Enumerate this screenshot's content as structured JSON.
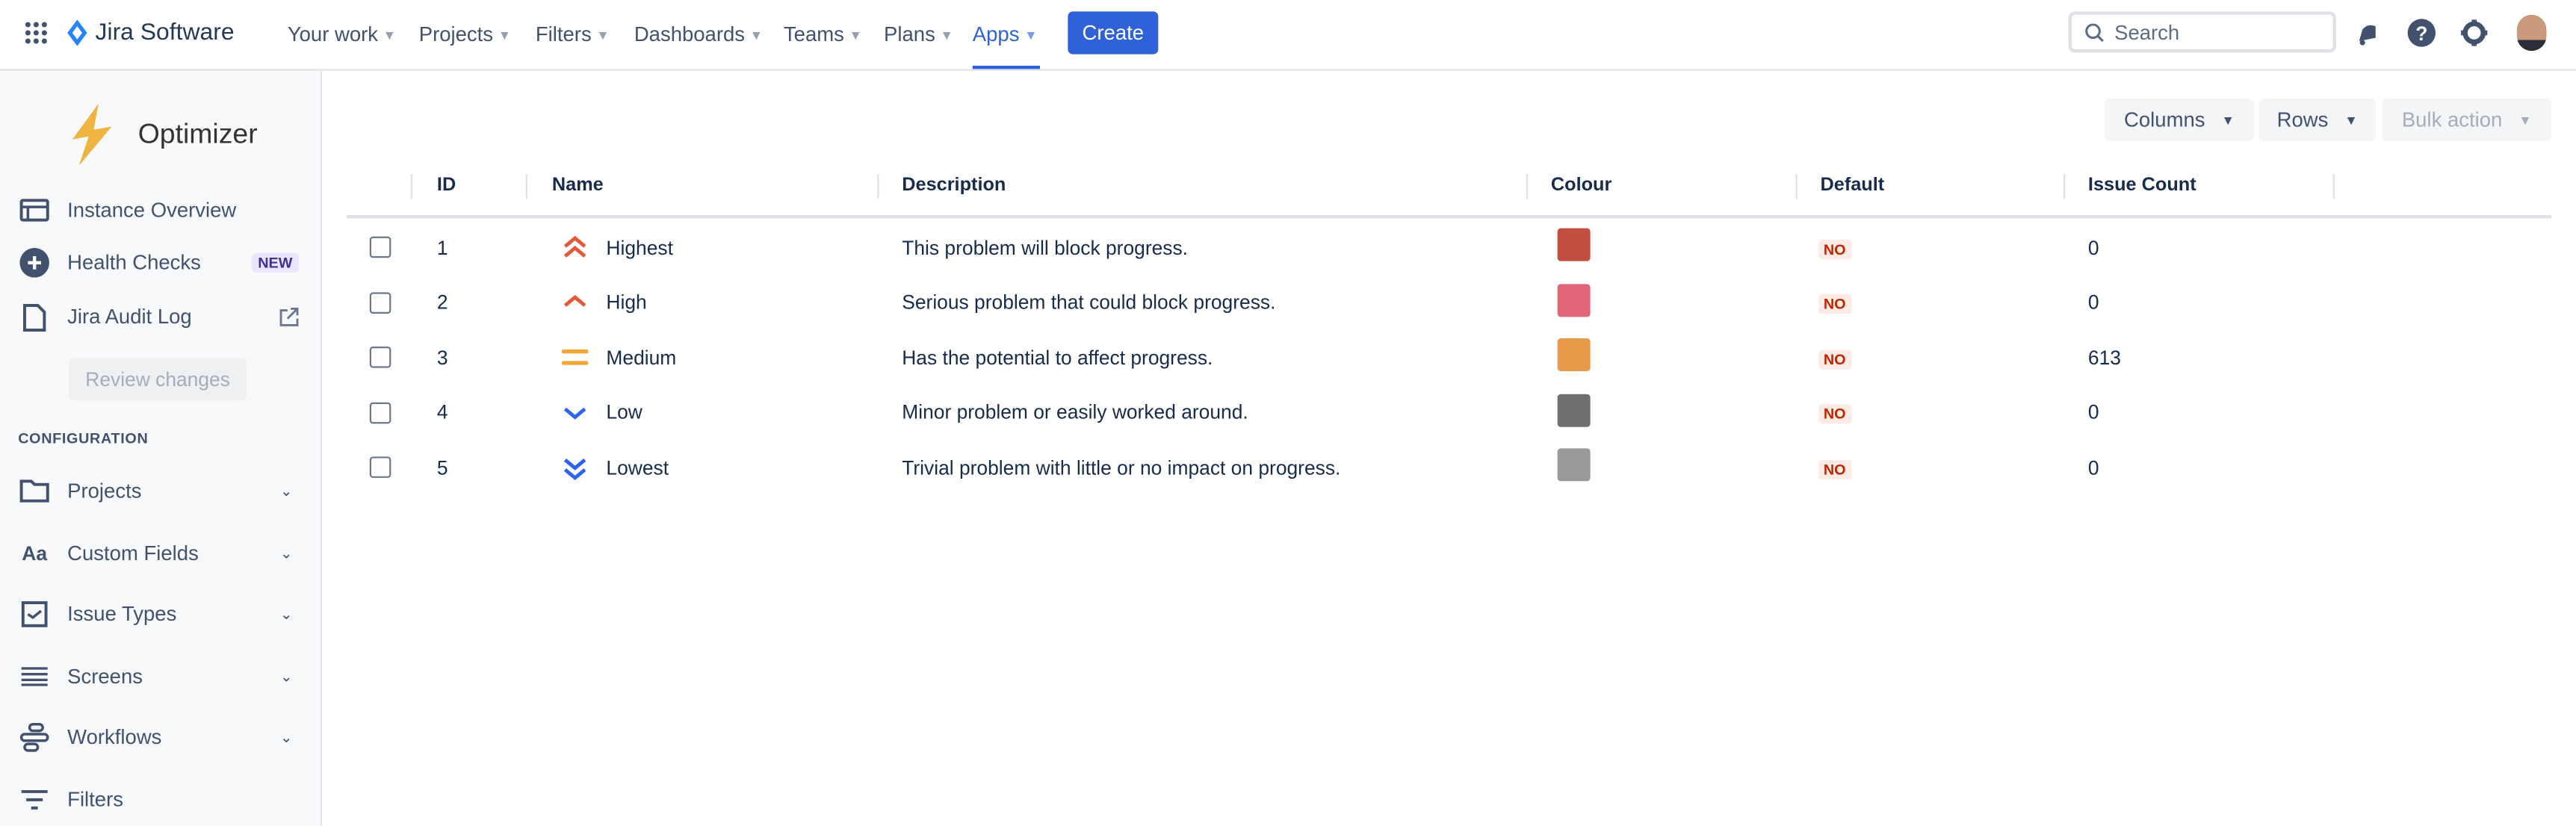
{
  "header": {
    "product": "Jira Software",
    "nav": [
      {
        "label": "Your work"
      },
      {
        "label": "Projects"
      },
      {
        "label": "Filters"
      },
      {
        "label": "Dashboards"
      },
      {
        "label": "Teams"
      },
      {
        "label": "Plans"
      },
      {
        "label": "Apps",
        "active": true
      }
    ],
    "create_label": "Create",
    "search_placeholder": "Search",
    "accent": "#2f62d8"
  },
  "sidebar": {
    "app_name": "Optimizer",
    "items": [
      {
        "label": "Instance Overview",
        "icon": "layout-icon"
      },
      {
        "label": "Health Checks",
        "icon": "plus-circle-icon",
        "badge": "NEW"
      },
      {
        "label": "Jira Audit Log",
        "icon": "document-icon",
        "external": true
      }
    ],
    "review_changes": "Review changes",
    "section": "CONFIGURATION",
    "config_items": [
      {
        "label": "Projects",
        "icon": "folder-icon"
      },
      {
        "label": "Custom Fields",
        "icon": "text-icon",
        "icon_text": "Aa"
      },
      {
        "label": "Issue Types",
        "icon": "checkbox-icon"
      },
      {
        "label": "Screens",
        "icon": "lines-icon"
      },
      {
        "label": "Workflows",
        "icon": "workflow-icon"
      },
      {
        "label": "Filters",
        "icon": "filter-icon"
      }
    ]
  },
  "toolbar": {
    "columns": "Columns",
    "rows": "Rows",
    "bulk_action": "Bulk action"
  },
  "table": {
    "headers": [
      "ID",
      "Name",
      "Description",
      "Colour",
      "Default",
      "Issue Count"
    ],
    "rows": [
      {
        "id": "1",
        "name": "Highest",
        "icon": "priority-highest-icon",
        "description": "This problem will block progress.",
        "colour": "#c14e3e",
        "default": "NO",
        "count": "0"
      },
      {
        "id": "2",
        "name": "High",
        "icon": "priority-high-icon",
        "description": "Serious problem that could block progress.",
        "colour": "#e06677",
        "default": "NO",
        "count": "0"
      },
      {
        "id": "3",
        "name": "Medium",
        "icon": "priority-medium-icon",
        "description": "Has the potential to affect progress.",
        "colour": "#e9994a",
        "default": "NO",
        "count": "613"
      },
      {
        "id": "4",
        "name": "Low",
        "icon": "priority-low-icon",
        "description": "Minor problem or easily worked around.",
        "colour": "#707070",
        "default": "NO",
        "count": "0"
      },
      {
        "id": "5",
        "name": "Lowest",
        "icon": "priority-lowest-icon",
        "description": "Trivial problem with little or no impact on progress.",
        "colour": "#999999",
        "default": "NO",
        "count": "0"
      }
    ]
  }
}
